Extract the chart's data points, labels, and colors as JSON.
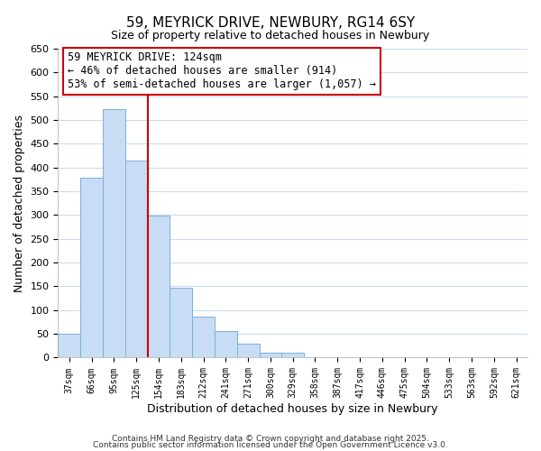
{
  "title": "59, MEYRICK DRIVE, NEWBURY, RG14 6SY",
  "subtitle": "Size of property relative to detached houses in Newbury",
  "xlabel": "Distribution of detached houses by size in Newbury",
  "ylabel": "Number of detached properties",
  "bar_color": "#c8ddf5",
  "bar_edge_color": "#7ab0d8",
  "grid_color": "#c8ddf5",
  "vline_color": "#cc0000",
  "vline_x": 3.5,
  "categories": [
    "37sqm",
    "66sqm",
    "95sqm",
    "125sqm",
    "154sqm",
    "183sqm",
    "212sqm",
    "241sqm",
    "271sqm",
    "300sqm",
    "329sqm",
    "358sqm",
    "387sqm",
    "417sqm",
    "446sqm",
    "475sqm",
    "504sqm",
    "533sqm",
    "563sqm",
    "592sqm",
    "621sqm"
  ],
  "values": [
    50,
    378,
    522,
    415,
    298,
    147,
    87,
    55,
    29,
    10,
    10,
    0,
    0,
    0,
    0,
    0,
    0,
    0,
    0,
    0,
    0
  ],
  "ylim": [
    0,
    650
  ],
  "yticks": [
    0,
    50,
    100,
    150,
    200,
    250,
    300,
    350,
    400,
    450,
    500,
    550,
    600,
    650
  ],
  "annotation_title": "59 MEYRICK DRIVE: 124sqm",
  "annotation_line1": "← 46% of detached houses are smaller (914)",
  "annotation_line2": "53% of semi-detached houses are larger (1,057) →",
  "annotation_box_color": "#ffffff",
  "annotation_box_edge": "#cc0000",
  "footer1": "Contains HM Land Registry data © Crown copyright and database right 2025.",
  "footer2": "Contains public sector information licensed under the Open Government Licence v3.0.",
  "background_color": "#ffffff"
}
